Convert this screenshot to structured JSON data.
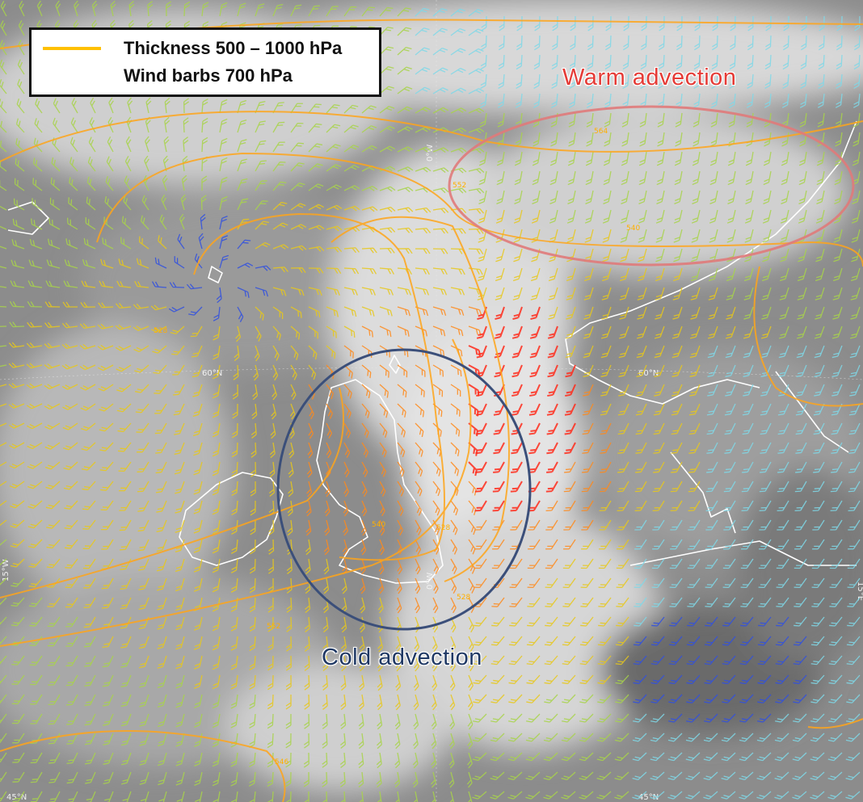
{
  "legend": {
    "thickness_label": "Thickness 500 – 1000 hPa",
    "wind_label": "Wind barbs 700 hPa",
    "thickness_color": "#ffc000"
  },
  "annotations": {
    "warm": "Warm advection",
    "cold": "Cold advection",
    "warm_color": "#e53b36",
    "cold_color": "#1f3864"
  },
  "gridlines": {
    "lat_60_left": "60°N",
    "lat_60_right": "60°N",
    "lat_45_left": "45°N",
    "lat_45_mid": "45°N",
    "lon_0_top": "0°W",
    "lon_0_bottom": "0°W",
    "lon_15_left": "15°W",
    "lon_15_right": "15°E"
  },
  "contour_labels": {
    "c1": "564",
    "c2": "552",
    "c3": "540",
    "c4": "528",
    "c5": "540",
    "c6": "528",
    "c7": "552",
    "c8": "528",
    "c9": "546"
  },
  "barb_colors": {
    "strong": "#ff2a1a",
    "moderate": "#ff8a1a",
    "light": "#e8c81a",
    "calm": "#a8d44a",
    "weak": "#7fd8e8",
    "very_weak": "#3050e0"
  },
  "region_colors": {
    "warm_ellipse": "#e07a7a",
    "cold_ellipse": "#3b4f7a",
    "thickness_contour": "#ffa51a"
  }
}
